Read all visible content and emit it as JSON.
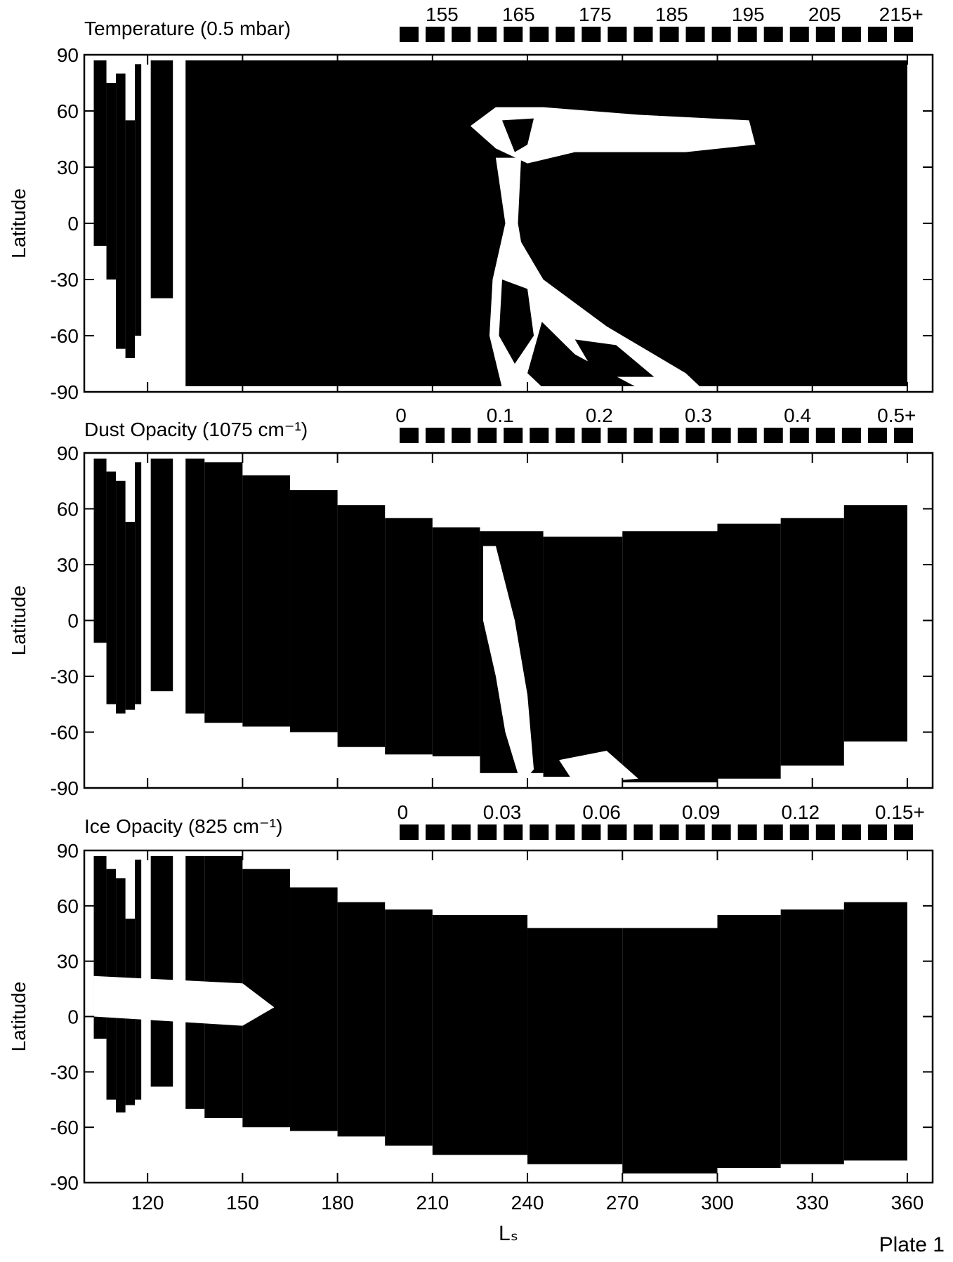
{
  "chart_data": [
    {
      "type": "heatmap",
      "title": "Temperature (0.5 mbar)",
      "y_label": "Latitude",
      "color": "#000000",
      "xlim": [
        100,
        368
      ],
      "xticks": [
        120,
        150,
        180,
        210,
        240,
        270,
        300,
        330,
        360
      ],
      "ylim": [
        -90,
        90
      ],
      "yticks": [
        -90,
        -60,
        -30,
        0,
        30,
        60,
        90
      ],
      "colorbar": {
        "lim": [
          149,
          217
        ],
        "ticks": [
          155,
          165,
          175,
          185,
          195,
          205,
          {
            "value": 215,
            "label": "215+"
          }
        ]
      },
      "columns": [
        {
          "ls": [
            103,
            107
          ],
          "lat": [
            -12,
            87
          ]
        },
        {
          "ls": [
            107,
            110
          ],
          "lat": [
            -30,
            75
          ]
        },
        {
          "ls": [
            110,
            113
          ],
          "lat": [
            -67,
            80
          ]
        },
        {
          "ls": [
            113,
            116
          ],
          "lat": [
            -72,
            55
          ]
        },
        {
          "ls": [
            116,
            118
          ],
          "lat": [
            -60,
            85
          ]
        },
        {
          "ls": [
            121,
            128
          ],
          "lat": [
            -40,
            87
          ]
        },
        {
          "ls": [
            132,
            360
          ],
          "lat": [
            -87,
            87
          ]
        }
      ],
      "light_regions": [
        {
          "ls": [
            222,
            230,
            245,
            275,
            310,
            312,
            290,
            255,
            240,
            230
          ],
          "lat": [
            52,
            62,
            62,
            58,
            55,
            42,
            38,
            38,
            32,
            40
          ]
        },
        {
          "ls": [
            230,
            238,
            237,
            240,
            245,
            240,
            245,
            232,
            228,
            229,
            233
          ],
          "lat": [
            35,
            35,
            0,
            -30,
            -50,
            -80,
            -88,
            -88,
            -60,
            -30,
            0
          ]
        },
        {
          "ls": [
            238,
            245,
            265,
            290,
            295,
            275,
            255,
            240,
            236
          ],
          "lat": [
            -10,
            -30,
            -55,
            -80,
            -88,
            -88,
            -70,
            -45,
            -25
          ]
        }
      ],
      "dark_regions": [
        {
          "ls": [
            232,
            242,
            240,
            236
          ],
          "lat": [
            55,
            56,
            42,
            38
          ]
        },
        {
          "ls": [
            232,
            240,
            242,
            236,
            231
          ],
          "lat": [
            -30,
            -35,
            -60,
            -75,
            -60
          ]
        },
        {
          "ls": [
            255,
            268,
            280,
            262
          ],
          "lat": [
            -62,
            -65,
            -82,
            -82
          ]
        }
      ]
    },
    {
      "type": "heatmap",
      "title": "Dust Opacity (1075 cm⁻¹)",
      "y_label": "Latitude",
      "color": "#000000",
      "xlim": [
        100,
        368
      ],
      "xticks": [
        120,
        150,
        180,
        210,
        240,
        270,
        300,
        330,
        360
      ],
      "ylim": [
        -90,
        90
      ],
      "yticks": [
        -90,
        -60,
        -30,
        0,
        30,
        60,
        90
      ],
      "colorbar": {
        "lim": [
          -0.005,
          0.52
        ],
        "ticks": [
          0,
          0.1,
          0.2,
          0.3,
          0.4,
          {
            "value": 0.5,
            "label": "0.5+"
          }
        ]
      },
      "columns": [
        {
          "ls": [
            103,
            107
          ],
          "lat": [
            -12,
            87
          ]
        },
        {
          "ls": [
            107,
            110
          ],
          "lat": [
            -45,
            80
          ]
        },
        {
          "ls": [
            110,
            113
          ],
          "lat": [
            -50,
            75
          ]
        },
        {
          "ls": [
            113,
            116
          ],
          "lat": [
            -48,
            53
          ]
        },
        {
          "ls": [
            116,
            118
          ],
          "lat": [
            -45,
            85
          ]
        },
        {
          "ls": [
            121,
            128
          ],
          "lat": [
            -38,
            87
          ]
        },
        {
          "ls": [
            132,
            138
          ],
          "lat": [
            -50,
            87
          ]
        },
        {
          "ls": [
            138,
            150
          ],
          "lat": [
            -55,
            85
          ]
        },
        {
          "ls": [
            150,
            165
          ],
          "lat": [
            -57,
            78
          ]
        },
        {
          "ls": [
            165,
            180
          ],
          "lat": [
            -60,
            70
          ]
        },
        {
          "ls": [
            180,
            195
          ],
          "lat": [
            -68,
            62
          ]
        },
        {
          "ls": [
            195,
            210
          ],
          "lat": [
            -72,
            55
          ]
        },
        {
          "ls": [
            210,
            225
          ],
          "lat": [
            -73,
            50
          ]
        },
        {
          "ls": [
            225,
            245
          ],
          "lat": [
            -82,
            48
          ]
        },
        {
          "ls": [
            245,
            270
          ],
          "lat": [
            -84,
            45
          ]
        },
        {
          "ls": [
            270,
            300
          ],
          "lat": [
            -87,
            48
          ]
        },
        {
          "ls": [
            300,
            320
          ],
          "lat": [
            -85,
            52
          ]
        },
        {
          "ls": [
            320,
            340
          ],
          "lat": [
            -78,
            55
          ]
        },
        {
          "ls": [
            340,
            360
          ],
          "lat": [
            -65,
            62
          ]
        }
      ],
      "light_regions": [
        {
          "ls": [
            226,
            230,
            236,
            240,
            242,
            238,
            233,
            230,
            226
          ],
          "lat": [
            40,
            40,
            0,
            -40,
            -80,
            -88,
            -60,
            -30,
            0
          ]
        },
        {
          "ls": [
            250,
            265,
            275,
            255
          ],
          "lat": [
            -75,
            -70,
            -85,
            -88
          ]
        }
      ],
      "dark_regions": []
    },
    {
      "type": "heatmap",
      "title": "Ice Opacity (825 cm⁻¹)",
      "y_label": "Latitude",
      "x_label": "Lₛ",
      "color": "#000000",
      "xlim": [
        100,
        368
      ],
      "xticks": [
        120,
        150,
        180,
        210,
        240,
        270,
        300,
        330,
        360
      ],
      "ylim": [
        -90,
        90
      ],
      "yticks": [
        -90,
        -60,
        -30,
        0,
        30,
        60,
        90
      ],
      "colorbar": {
        "lim": [
          -0.002,
          0.155
        ],
        "ticks": [
          0,
          0.03,
          0.06,
          0.09,
          0.12,
          {
            "value": 0.15,
            "label": "0.15+"
          }
        ]
      },
      "columns": [
        {
          "ls": [
            103,
            107
          ],
          "lat": [
            -12,
            87
          ]
        },
        {
          "ls": [
            107,
            110
          ],
          "lat": [
            -45,
            80
          ]
        },
        {
          "ls": [
            110,
            113
          ],
          "lat": [
            -52,
            75
          ]
        },
        {
          "ls": [
            113,
            116
          ],
          "lat": [
            -48,
            53
          ]
        },
        {
          "ls": [
            116,
            118
          ],
          "lat": [
            -45,
            85
          ]
        },
        {
          "ls": [
            121,
            128
          ],
          "lat": [
            -38,
            87
          ]
        },
        {
          "ls": [
            132,
            138
          ],
          "lat": [
            -50,
            87
          ]
        },
        {
          "ls": [
            138,
            150
          ],
          "lat": [
            -55,
            87
          ]
        },
        {
          "ls": [
            150,
            165
          ],
          "lat": [
            -60,
            80
          ]
        },
        {
          "ls": [
            165,
            180
          ],
          "lat": [
            -62,
            70
          ]
        },
        {
          "ls": [
            180,
            195
          ],
          "lat": [
            -65,
            62
          ]
        },
        {
          "ls": [
            195,
            210
          ],
          "lat": [
            -70,
            58
          ]
        },
        {
          "ls": [
            210,
            240
          ],
          "lat": [
            -75,
            55
          ]
        },
        {
          "ls": [
            240,
            270
          ],
          "lat": [
            -80,
            48
          ]
        },
        {
          "ls": [
            270,
            300
          ],
          "lat": [
            -85,
            48
          ]
        },
        {
          "ls": [
            300,
            320
          ],
          "lat": [
            -82,
            55
          ]
        },
        {
          "ls": [
            320,
            340
          ],
          "lat": [
            -80,
            58
          ]
        },
        {
          "ls": [
            340,
            360
          ],
          "lat": [
            -78,
            62
          ]
        }
      ],
      "light_regions": [
        {
          "ls": [
            103,
            150,
            160,
            150,
            103
          ],
          "lat": [
            22,
            18,
            5,
            -5,
            0
          ]
        }
      ],
      "dark_regions": []
    }
  ],
  "footer": "Plate 1"
}
